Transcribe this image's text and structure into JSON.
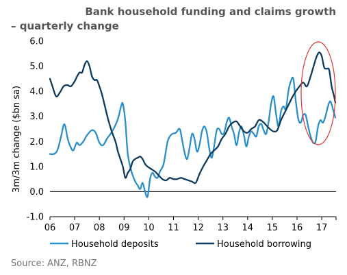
{
  "chart_data": {
    "type": "line",
    "title_line1": "Bank household funding and claims growth",
    "title_line2": "– quarterly change",
    "ylabel": "3m/3m change ($bn sa)",
    "ylim": [
      -1.0,
      6.0
    ],
    "yticks": [
      "6.0",
      "5.0",
      "4.0",
      "3.0",
      "2.0",
      "1.0",
      "0.0",
      "-1.0"
    ],
    "xlim": [
      2006,
      2017.75
    ],
    "xticks": [
      "06",
      "07",
      "08",
      "09",
      "10",
      "11",
      "12",
      "13",
      "14",
      "15",
      "16",
      "17"
    ],
    "legend_position": "bottom",
    "source": "Source: ANZ, RBNZ",
    "annotation": "red circle highlighting latest data",
    "series": [
      {
        "name": "Household deposits",
        "color": "#2a8fc9",
        "x": [
          2006.0,
          2006.15,
          2006.3,
          2006.45,
          2006.55,
          2006.62,
          2006.72,
          2006.85,
          2006.95,
          2007.08,
          2007.2,
          2007.35,
          2007.5,
          2007.7,
          2007.85,
          2008.0,
          2008.15,
          2008.3,
          2008.45,
          2008.6,
          2008.75,
          2008.88,
          2008.95,
          2009.05,
          2009.15,
          2009.3,
          2009.45,
          2009.55,
          2009.65,
          2009.75,
          2009.85,
          2009.95,
          2010.05,
          2010.15,
          2010.25,
          2010.35,
          2010.45,
          2010.6,
          2010.75,
          2010.85,
          2010.95,
          2011.1,
          2011.25,
          2011.35,
          2011.45,
          2011.55,
          2011.65,
          2011.75,
          2011.85,
          2011.95,
          2012.05,
          2012.15,
          2012.25,
          2012.35,
          2012.45,
          2012.55,
          2012.65,
          2012.75,
          2012.85,
          2012.95,
          2013.05,
          2013.15,
          2013.25,
          2013.35,
          2013.45,
          2013.55,
          2013.65,
          2013.75,
          2013.85,
          2013.95,
          2014.05,
          2014.15,
          2014.25,
          2014.35,
          2014.45,
          2014.55,
          2014.65,
          2014.75,
          2014.85,
          2014.95,
          2015.05,
          2015.15,
          2015.25,
          2015.35,
          2015.45,
          2015.55,
          2015.65,
          2015.75,
          2015.85,
          2015.95,
          2016.05,
          2016.15,
          2016.25,
          2016.35,
          2016.45,
          2016.55,
          2016.65,
          2016.75,
          2016.85,
          2016.95,
          2017.05,
          2017.15,
          2017.25,
          2017.35,
          2017.45,
          2017.55
        ],
        "values": [
          1.5,
          1.5,
          1.65,
          2.2,
          2.65,
          2.6,
          2.1,
          1.75,
          1.65,
          1.95,
          1.85,
          2.0,
          2.25,
          2.45,
          2.35,
          1.95,
          1.85,
          2.1,
          2.3,
          2.55,
          2.9,
          3.4,
          3.5,
          2.8,
          1.5,
          0.8,
          0.4,
          0.25,
          0.1,
          0.35,
          0.0,
          -0.2,
          0.5,
          0.75,
          0.6,
          0.55,
          0.8,
          1.1,
          1.95,
          2.2,
          2.3,
          2.35,
          2.5,
          2.05,
          1.55,
          1.3,
          1.75,
          2.3,
          2.1,
          1.6,
          1.85,
          2.4,
          2.6,
          2.35,
          1.7,
          1.35,
          1.85,
          2.45,
          2.5,
          2.3,
          2.35,
          2.75,
          2.95,
          2.6,
          2.3,
          1.85,
          2.35,
          2.6,
          2.25,
          1.8,
          2.2,
          2.4,
          2.3,
          2.2,
          2.6,
          2.7,
          2.45,
          2.3,
          2.8,
          3.5,
          3.8,
          3.1,
          2.6,
          3.2,
          3.4,
          3.3,
          4.0,
          4.4,
          4.5,
          3.6,
          2.9,
          2.75,
          3.05,
          3.05,
          2.6,
          2.2,
          1.95,
          2.0,
          2.6,
          2.85,
          2.75,
          3.0,
          3.4,
          3.6,
          3.3,
          2.95
        ]
      },
      {
        "name": "Household borrowing",
        "color": "#0d3a5c",
        "x": [
          2006.0,
          2006.1,
          2006.25,
          2006.4,
          2006.55,
          2006.7,
          2006.85,
          2007.0,
          2007.1,
          2007.2,
          2007.3,
          2007.4,
          2007.5,
          2007.6,
          2007.7,
          2007.8,
          2007.9,
          2008.0,
          2008.1,
          2008.2,
          2008.35,
          2008.5,
          2008.65,
          2008.75,
          2008.85,
          2008.95,
          2009.05,
          2009.15,
          2009.25,
          2009.35,
          2009.45,
          2009.55,
          2009.65,
          2009.75,
          2009.85,
          2009.95,
          2010.1,
          2010.25,
          2010.4,
          2010.55,
          2010.7,
          2010.85,
          2011.0,
          2011.15,
          2011.3,
          2011.45,
          2011.6,
          2011.75,
          2011.9,
          2012.05,
          2012.2,
          2012.35,
          2012.5,
          2012.65,
          2012.8,
          2012.95,
          2013.1,
          2013.25,
          2013.4,
          2013.55,
          2013.7,
          2013.85,
          2014.0,
          2014.15,
          2014.3,
          2014.45,
          2014.6,
          2014.75,
          2014.9,
          2015.05,
          2015.2,
          2015.35,
          2015.5,
          2015.65,
          2015.8,
          2015.95,
          2016.1,
          2016.25,
          2016.4,
          2016.55,
          2016.7,
          2016.8,
          2016.9,
          2017.0,
          2017.1,
          2017.2,
          2017.3,
          2017.4,
          2017.5,
          2017.55
        ],
        "values": [
          4.5,
          4.2,
          3.8,
          3.95,
          4.2,
          4.25,
          4.2,
          4.4,
          4.6,
          4.75,
          4.75,
          5.05,
          5.2,
          5.0,
          4.6,
          4.45,
          4.45,
          4.2,
          3.9,
          3.5,
          2.9,
          2.4,
          2.0,
          1.6,
          1.3,
          1.0,
          0.55,
          0.75,
          0.9,
          1.2,
          1.3,
          1.35,
          1.4,
          1.3,
          1.1,
          1.0,
          0.9,
          0.8,
          0.65,
          0.5,
          0.45,
          0.55,
          0.5,
          0.5,
          0.55,
          0.5,
          0.45,
          0.4,
          0.35,
          0.7,
          1.0,
          1.25,
          1.5,
          1.65,
          1.8,
          2.1,
          2.3,
          2.6,
          2.75,
          2.8,
          2.6,
          2.4,
          2.35,
          2.5,
          2.6,
          2.85,
          2.8,
          2.65,
          2.5,
          2.4,
          2.45,
          2.85,
          3.15,
          3.45,
          3.75,
          4.0,
          4.2,
          4.35,
          4.2,
          4.6,
          5.1,
          5.4,
          5.55,
          5.4,
          4.95,
          4.9,
          4.85,
          4.2,
          3.8,
          3.55
        ]
      }
    ]
  }
}
